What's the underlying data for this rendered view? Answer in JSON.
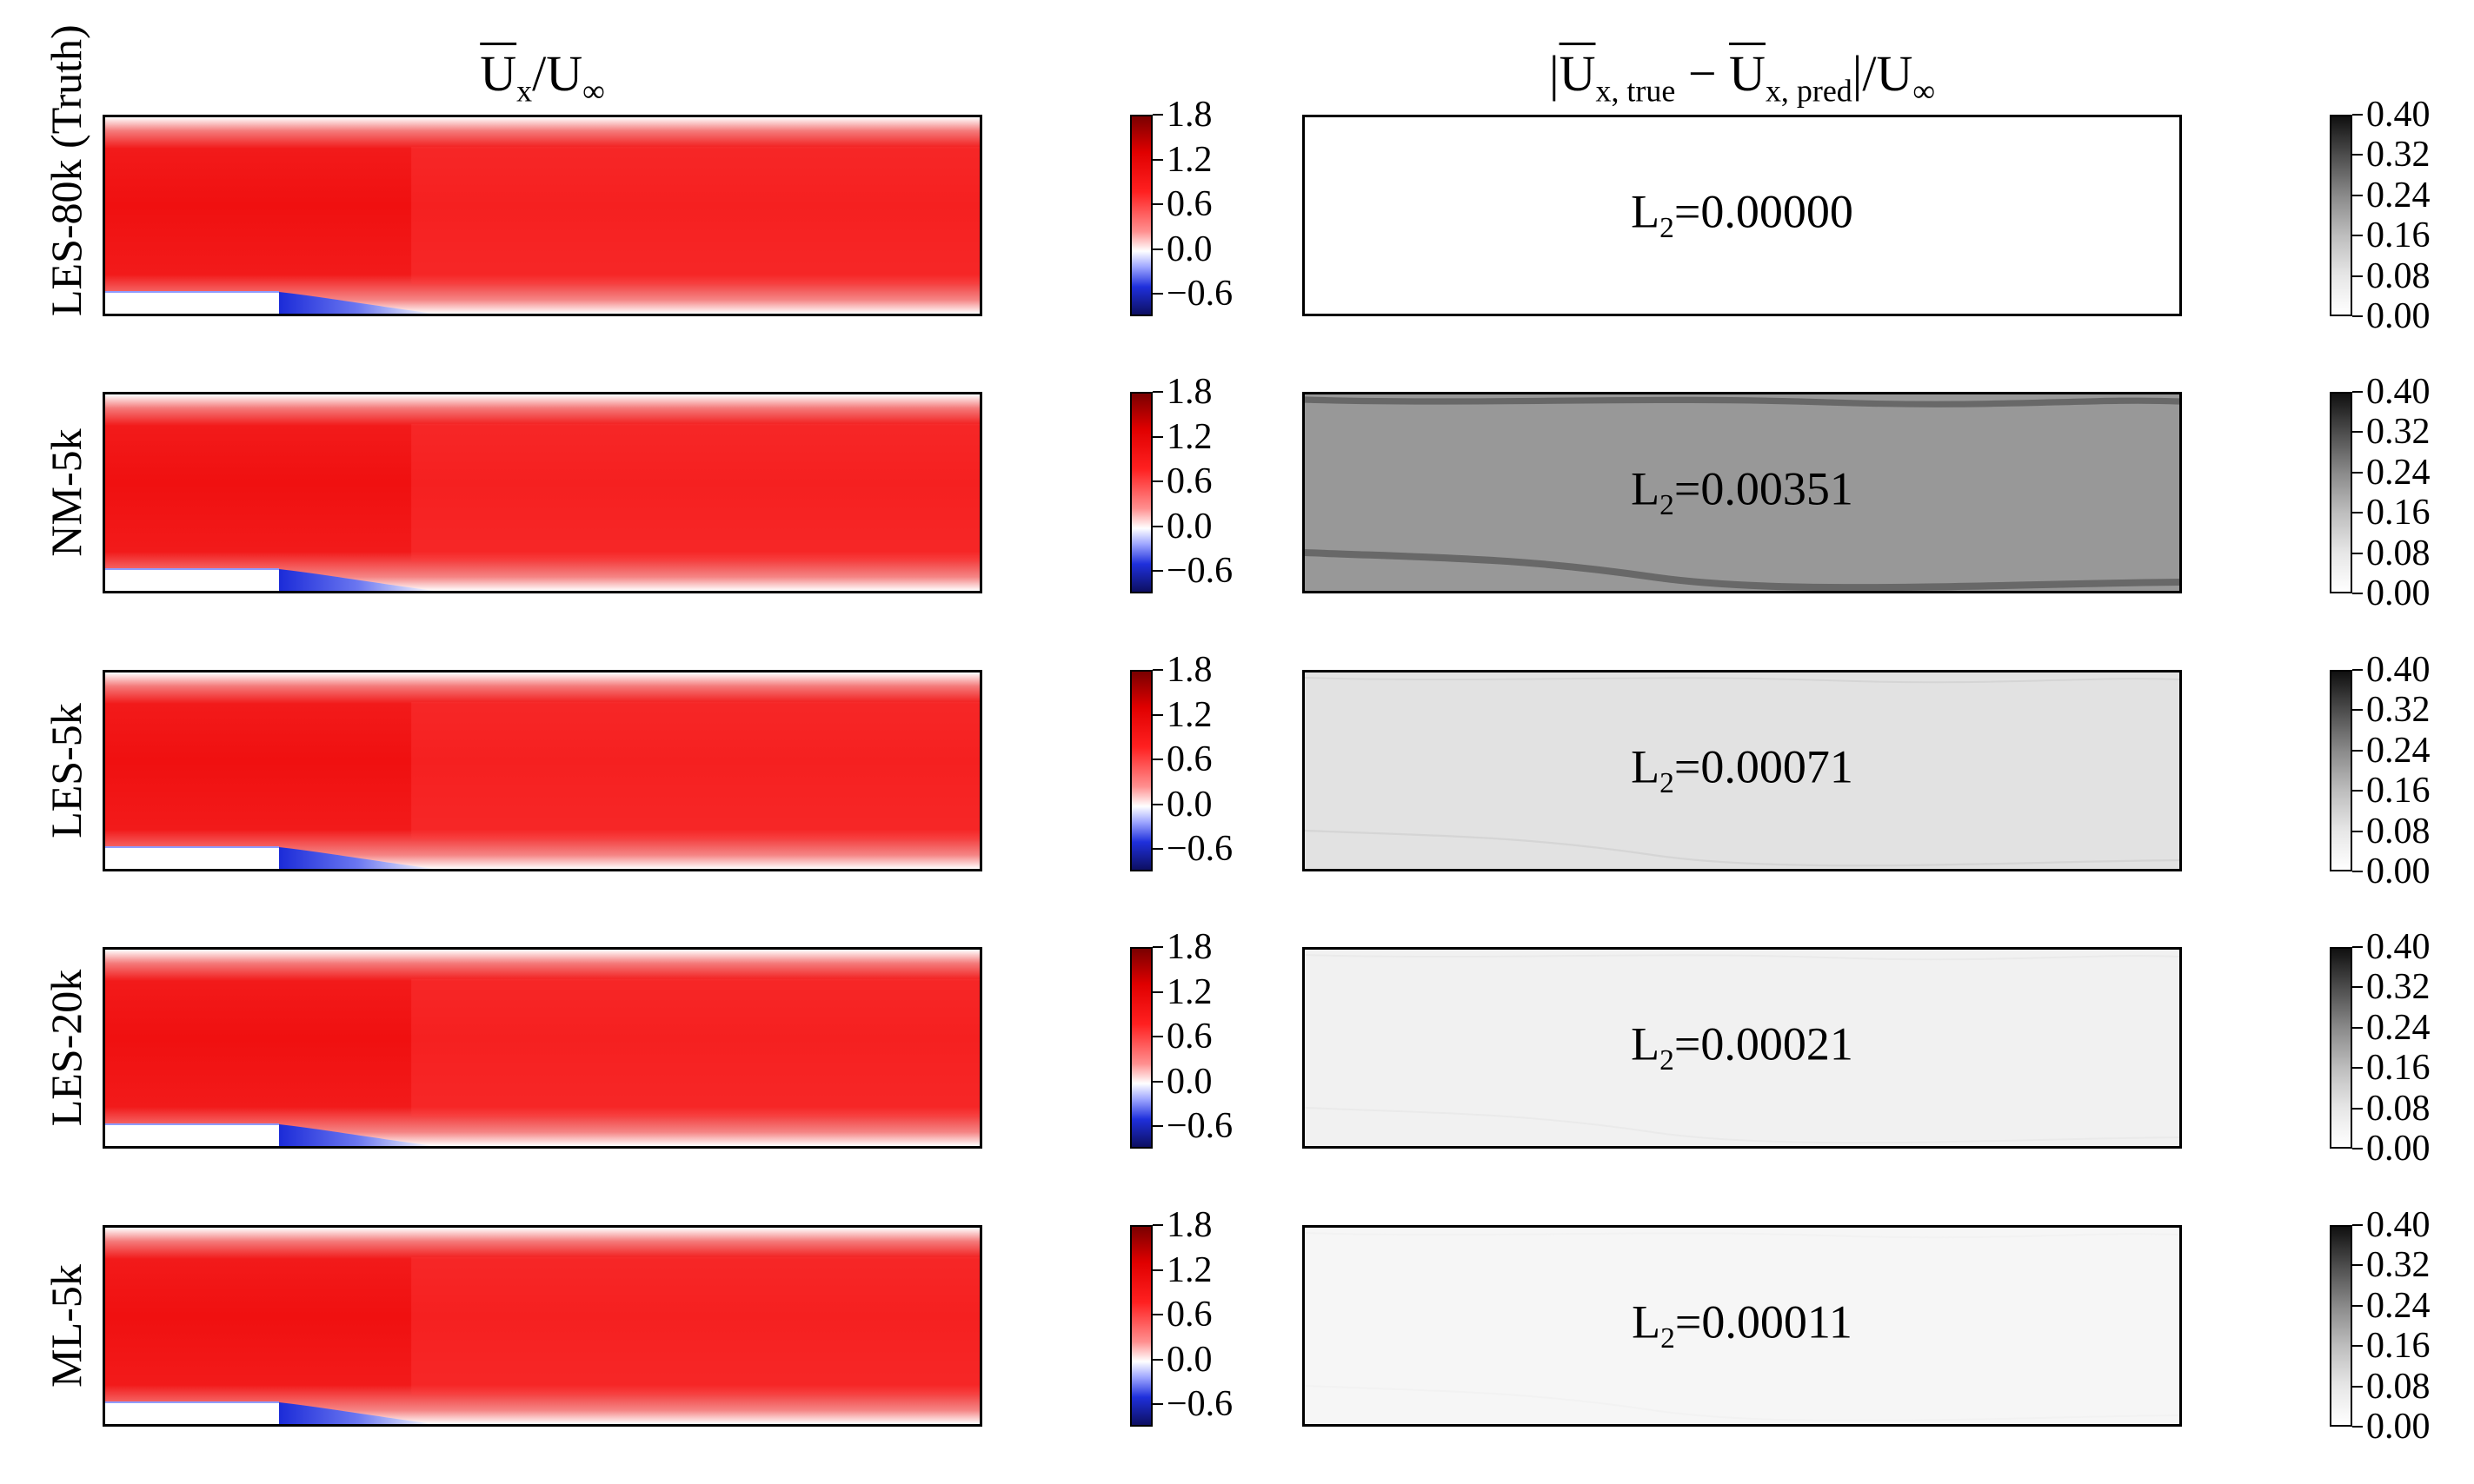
{
  "figure": {
    "left_title": {
      "base": "U",
      "sub": "x",
      "rest": "/U",
      "rest_sub": "∞"
    },
    "right_title": {
      "open": "|",
      "a": "U",
      "a_sub": "x, true",
      "minus": " − ",
      "b": "U",
      "b_sub": "x, pred",
      "rest": "|/U",
      "rest_sub": "∞"
    },
    "rows": [
      {
        "label": "LES-80k (Truth)",
        "l2_prefix": "L",
        "l2_sub": "2",
        "l2_value": "=0.00000",
        "error_level": 0.0
      },
      {
        "label": "NM-5k",
        "l2_prefix": "L",
        "l2_sub": "2",
        "l2_value": "=0.00351",
        "error_level": 0.18
      },
      {
        "label": "LES-5k",
        "l2_prefix": "L",
        "l2_sub": "2",
        "l2_value": "=0.00071",
        "error_level": 0.05
      },
      {
        "label": "LES-20k",
        "l2_prefix": "L",
        "l2_sub": "2",
        "l2_value": "=0.00021",
        "error_level": 0.025
      },
      {
        "label": "ML-5k",
        "l2_prefix": "L",
        "l2_sub": "2",
        "l2_value": "=0.00011",
        "error_level": 0.015
      }
    ],
    "velocity_colorbar": {
      "ticks": [
        "1.8",
        "1.2",
        "0.6",
        "0.0",
        "−0.6"
      ],
      "colormap": "seismic",
      "min": -0.9,
      "max": 1.8
    },
    "error_colorbar": {
      "ticks": [
        "0.40",
        "0.32",
        "0.24",
        "0.16",
        "0.08",
        "0.00"
      ],
      "colormap": "gray_r",
      "min": 0.0,
      "max": 0.4
    },
    "colors": {
      "flow_red": "#f21616",
      "recirc_blue": "#2a3be0",
      "step_white": "#ffffff"
    }
  }
}
